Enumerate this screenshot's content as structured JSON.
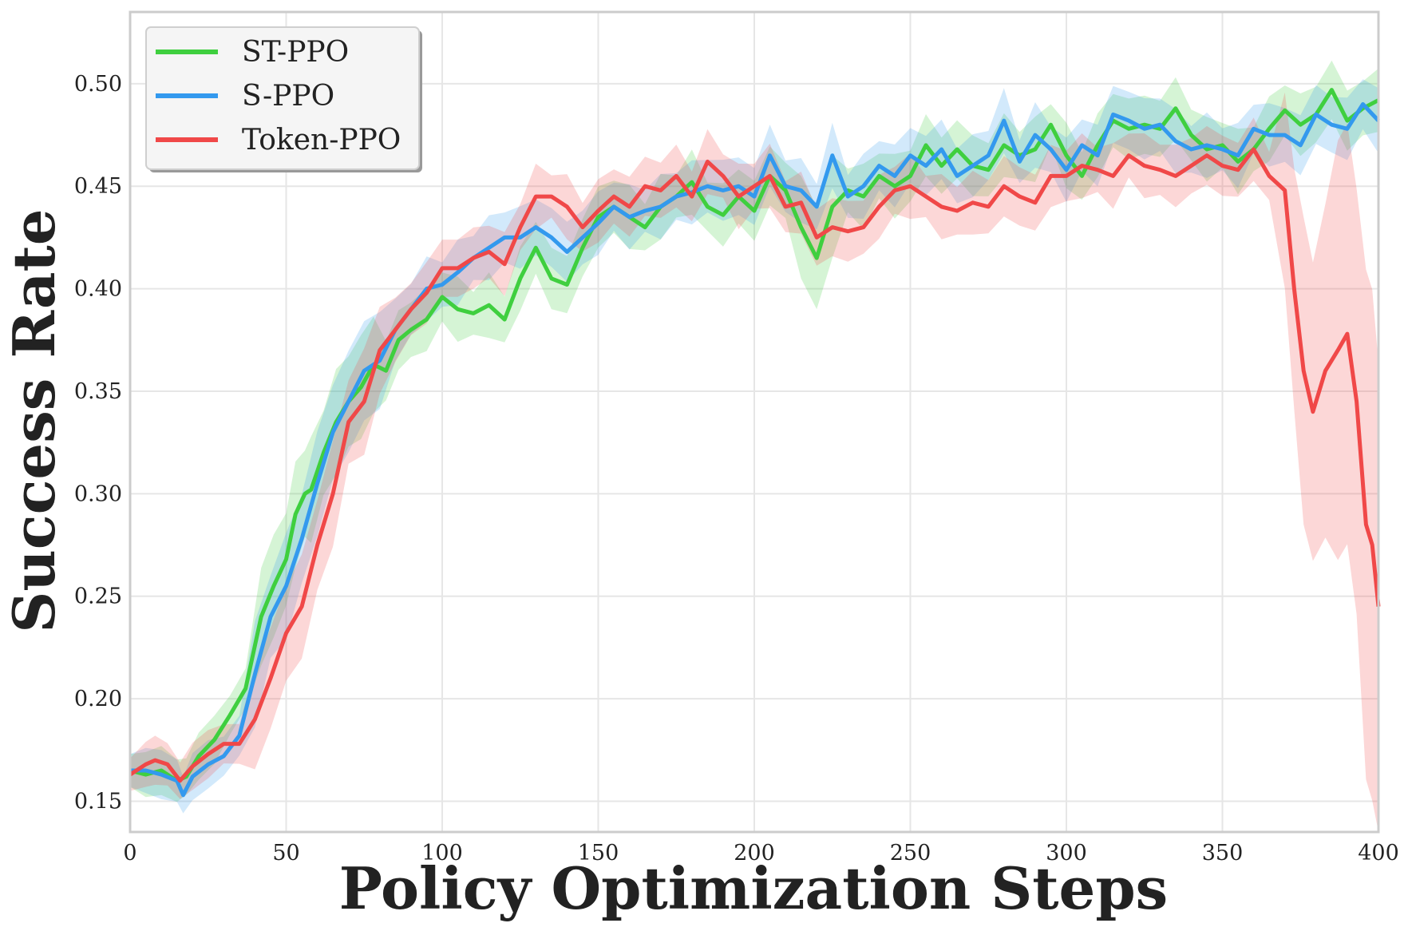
{
  "chart_data": {
    "type": "line",
    "xlabel": "Policy Optimization Steps",
    "ylabel": "Success Rate",
    "xlim": [
      0,
      400
    ],
    "ylim": [
      0.135,
      0.535
    ],
    "xticks": [
      0,
      50,
      100,
      150,
      200,
      250,
      300,
      350,
      400
    ],
    "yticks": [
      0.15,
      0.2,
      0.25,
      0.3,
      0.35,
      0.4,
      0.45,
      0.5
    ],
    "xtick_labels": [
      "0",
      "50",
      "100",
      "150",
      "200",
      "250",
      "300",
      "350",
      "400"
    ],
    "ytick_labels": [
      "0.15",
      "0.20",
      "0.25",
      "0.30",
      "0.35",
      "0.40",
      "0.45",
      "0.50"
    ],
    "grid": true,
    "legend_position": "top-left",
    "series": [
      {
        "name": "ST-PPO",
        "color": "#3fcf3f",
        "points": [
          [
            0,
            0.165
          ],
          [
            5,
            0.163
          ],
          [
            10,
            0.165
          ],
          [
            15,
            0.16
          ],
          [
            18,
            0.162
          ],
          [
            22,
            0.172
          ],
          [
            27,
            0.18
          ],
          [
            32,
            0.192
          ],
          [
            37,
            0.205
          ],
          [
            42,
            0.24
          ],
          [
            46,
            0.255
          ],
          [
            50,
            0.268
          ],
          [
            53,
            0.29
          ],
          [
            56,
            0.3
          ],
          [
            58,
            0.302
          ],
          [
            62,
            0.32
          ],
          [
            66,
            0.335
          ],
          [
            70,
            0.345
          ],
          [
            74,
            0.352
          ],
          [
            78,
            0.363
          ],
          [
            82,
            0.36
          ],
          [
            86,
            0.375
          ],
          [
            90,
            0.38
          ],
          [
            95,
            0.385
          ],
          [
            100,
            0.396
          ],
          [
            105,
            0.39
          ],
          [
            110,
            0.388
          ],
          [
            115,
            0.392
          ],
          [
            120,
            0.385
          ],
          [
            125,
            0.405
          ],
          [
            130,
            0.42
          ],
          [
            135,
            0.405
          ],
          [
            140,
            0.402
          ],
          [
            145,
            0.42
          ],
          [
            150,
            0.435
          ],
          [
            155,
            0.44
          ],
          [
            160,
            0.435
          ],
          [
            165,
            0.43
          ],
          [
            170,
            0.44
          ],
          [
            175,
            0.445
          ],
          [
            180,
            0.452
          ],
          [
            185,
            0.44
          ],
          [
            190,
            0.436
          ],
          [
            195,
            0.445
          ],
          [
            200,
            0.438
          ],
          [
            205,
            0.455
          ],
          [
            210,
            0.448
          ],
          [
            215,
            0.43
          ],
          [
            220,
            0.415
          ],
          [
            225,
            0.44
          ],
          [
            230,
            0.448
          ],
          [
            235,
            0.445
          ],
          [
            240,
            0.455
          ],
          [
            245,
            0.45
          ],
          [
            250,
            0.455
          ],
          [
            255,
            0.47
          ],
          [
            260,
            0.46
          ],
          [
            265,
            0.468
          ],
          [
            270,
            0.46
          ],
          [
            275,
            0.458
          ],
          [
            280,
            0.47
          ],
          [
            285,
            0.465
          ],
          [
            290,
            0.468
          ],
          [
            295,
            0.48
          ],
          [
            300,
            0.465
          ],
          [
            305,
            0.455
          ],
          [
            310,
            0.47
          ],
          [
            315,
            0.482
          ],
          [
            320,
            0.478
          ],
          [
            325,
            0.48
          ],
          [
            330,
            0.478
          ],
          [
            335,
            0.488
          ],
          [
            340,
            0.475
          ],
          [
            345,
            0.468
          ],
          [
            350,
            0.47
          ],
          [
            355,
            0.462
          ],
          [
            360,
            0.468
          ],
          [
            365,
            0.478
          ],
          [
            370,
            0.487
          ],
          [
            375,
            0.48
          ],
          [
            380,
            0.485
          ],
          [
            385,
            0.497
          ],
          [
            390,
            0.482
          ],
          [
            395,
            0.488
          ],
          [
            400,
            0.492
          ]
        ]
      },
      {
        "name": "S-PPO",
        "color": "#3399ee",
        "points": [
          [
            0,
            0.165
          ],
          [
            5,
            0.165
          ],
          [
            10,
            0.163
          ],
          [
            15,
            0.16
          ],
          [
            17,
            0.153
          ],
          [
            20,
            0.162
          ],
          [
            25,
            0.168
          ],
          [
            30,
            0.172
          ],
          [
            35,
            0.182
          ],
          [
            40,
            0.212
          ],
          [
            45,
            0.24
          ],
          [
            50,
            0.255
          ],
          [
            55,
            0.278
          ],
          [
            60,
            0.305
          ],
          [
            65,
            0.33
          ],
          [
            70,
            0.345
          ],
          [
            75,
            0.36
          ],
          [
            80,
            0.365
          ],
          [
            85,
            0.38
          ],
          [
            90,
            0.39
          ],
          [
            95,
            0.4
          ],
          [
            100,
            0.402
          ],
          [
            105,
            0.408
          ],
          [
            110,
            0.415
          ],
          [
            115,
            0.42
          ],
          [
            120,
            0.425
          ],
          [
            125,
            0.425
          ],
          [
            130,
            0.43
          ],
          [
            135,
            0.425
          ],
          [
            140,
            0.418
          ],
          [
            145,
            0.425
          ],
          [
            150,
            0.432
          ],
          [
            155,
            0.44
          ],
          [
            160,
            0.435
          ],
          [
            165,
            0.438
          ],
          [
            170,
            0.44
          ],
          [
            175,
            0.445
          ],
          [
            180,
            0.447
          ],
          [
            185,
            0.45
          ],
          [
            190,
            0.448
          ],
          [
            195,
            0.45
          ],
          [
            200,
            0.445
          ],
          [
            205,
            0.465
          ],
          [
            210,
            0.45
          ],
          [
            215,
            0.448
          ],
          [
            220,
            0.44
          ],
          [
            225,
            0.465
          ],
          [
            230,
            0.445
          ],
          [
            235,
            0.45
          ],
          [
            240,
            0.46
          ],
          [
            245,
            0.455
          ],
          [
            250,
            0.465
          ],
          [
            255,
            0.46
          ],
          [
            260,
            0.468
          ],
          [
            265,
            0.455
          ],
          [
            270,
            0.46
          ],
          [
            275,
            0.465
          ],
          [
            280,
            0.482
          ],
          [
            285,
            0.462
          ],
          [
            290,
            0.475
          ],
          [
            295,
            0.468
          ],
          [
            300,
            0.458
          ],
          [
            305,
            0.47
          ],
          [
            310,
            0.465
          ],
          [
            315,
            0.485
          ],
          [
            320,
            0.482
          ],
          [
            325,
            0.478
          ],
          [
            330,
            0.48
          ],
          [
            335,
            0.472
          ],
          [
            340,
            0.468
          ],
          [
            345,
            0.47
          ],
          [
            350,
            0.468
          ],
          [
            355,
            0.465
          ],
          [
            360,
            0.478
          ],
          [
            365,
            0.475
          ],
          [
            370,
            0.475
          ],
          [
            375,
            0.47
          ],
          [
            380,
            0.485
          ],
          [
            385,
            0.48
          ],
          [
            390,
            0.478
          ],
          [
            395,
            0.49
          ],
          [
            400,
            0.482
          ]
        ]
      },
      {
        "name": "Token-PPO",
        "color": "#f04848",
        "points": [
          [
            0,
            0.163
          ],
          [
            5,
            0.168
          ],
          [
            8,
            0.17
          ],
          [
            12,
            0.168
          ],
          [
            16,
            0.16
          ],
          [
            20,
            0.167
          ],
          [
            25,
            0.173
          ],
          [
            30,
            0.178
          ],
          [
            35,
            0.178
          ],
          [
            40,
            0.19
          ],
          [
            45,
            0.21
          ],
          [
            50,
            0.232
          ],
          [
            55,
            0.245
          ],
          [
            60,
            0.275
          ],
          [
            65,
            0.3
          ],
          [
            70,
            0.335
          ],
          [
            75,
            0.345
          ],
          [
            80,
            0.37
          ],
          [
            85,
            0.38
          ],
          [
            90,
            0.39
          ],
          [
            95,
            0.398
          ],
          [
            100,
            0.41
          ],
          [
            105,
            0.41
          ],
          [
            110,
            0.415
          ],
          [
            115,
            0.418
          ],
          [
            120,
            0.412
          ],
          [
            125,
            0.43
          ],
          [
            130,
            0.445
          ],
          [
            135,
            0.445
          ],
          [
            140,
            0.44
          ],
          [
            145,
            0.43
          ],
          [
            150,
            0.438
          ],
          [
            155,
            0.445
          ],
          [
            160,
            0.44
          ],
          [
            165,
            0.45
          ],
          [
            170,
            0.448
          ],
          [
            175,
            0.455
          ],
          [
            180,
            0.445
          ],
          [
            185,
            0.462
          ],
          [
            190,
            0.455
          ],
          [
            195,
            0.445
          ],
          [
            200,
            0.45
          ],
          [
            205,
            0.455
          ],
          [
            210,
            0.44
          ],
          [
            215,
            0.442
          ],
          [
            220,
            0.425
          ],
          [
            225,
            0.43
          ],
          [
            230,
            0.428
          ],
          [
            235,
            0.43
          ],
          [
            240,
            0.44
          ],
          [
            245,
            0.448
          ],
          [
            250,
            0.45
          ],
          [
            255,
            0.445
          ],
          [
            260,
            0.44
          ],
          [
            265,
            0.438
          ],
          [
            270,
            0.442
          ],
          [
            275,
            0.44
          ],
          [
            280,
            0.45
          ],
          [
            285,
            0.445
          ],
          [
            290,
            0.442
          ],
          [
            295,
            0.455
          ],
          [
            300,
            0.455
          ],
          [
            305,
            0.46
          ],
          [
            310,
            0.458
          ],
          [
            315,
            0.455
          ],
          [
            320,
            0.465
          ],
          [
            325,
            0.46
          ],
          [
            330,
            0.458
          ],
          [
            335,
            0.455
          ],
          [
            340,
            0.46
          ],
          [
            345,
            0.465
          ],
          [
            350,
            0.46
          ],
          [
            355,
            0.458
          ],
          [
            360,
            0.468
          ],
          [
            365,
            0.455
          ],
          [
            370,
            0.448
          ],
          [
            373,
            0.4
          ],
          [
            376,
            0.36
          ],
          [
            379,
            0.34
          ],
          [
            383,
            0.36
          ],
          [
            387,
            0.37
          ],
          [
            390,
            0.378
          ],
          [
            393,
            0.345
          ],
          [
            396,
            0.285
          ],
          [
            398,
            0.275
          ],
          [
            400,
            0.245
          ]
        ]
      }
    ]
  }
}
